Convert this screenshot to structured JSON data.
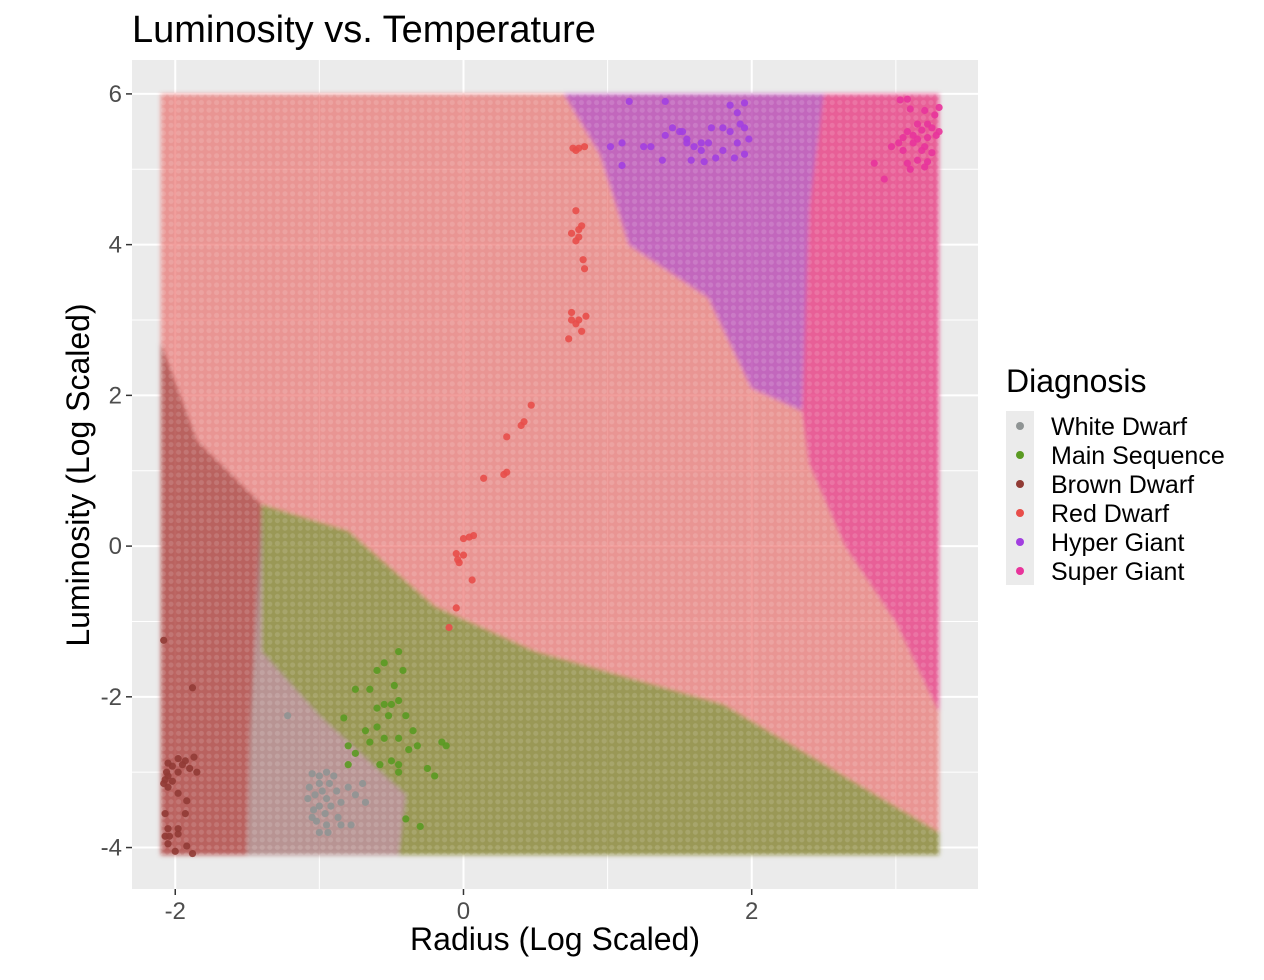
{
  "chart_data": {
    "type": "scatter",
    "title": "Luminosity vs. Temperature",
    "xlabel": "Radius (Log Scaled)",
    "ylabel": "Luminosity (Log Scaled)",
    "xlim": [
      -2.3,
      3.57
    ],
    "ylim": [
      -4.55,
      6.45
    ],
    "x_ticks": [
      -2,
      0,
      2
    ],
    "y_ticks": [
      -4,
      -2,
      0,
      2,
      4,
      6
    ],
    "grid": true,
    "legend_title": "Diagnosis",
    "legend_position": "right",
    "background_regions": "classification decision regions filling x -2.1..3.3, y -4.1..6.0",
    "series": [
      {
        "name": "White Dwarf",
        "color": "#8f9494",
        "points": [
          [
            -1.22,
            -2.25
          ],
          [
            -1.05,
            -3.02
          ],
          [
            -1.0,
            -3.05
          ],
          [
            -0.95,
            -3.0
          ],
          [
            -0.9,
            -3.05
          ],
          [
            -1.0,
            -3.15
          ],
          [
            -0.93,
            -3.15
          ],
          [
            -1.07,
            -3.2
          ],
          [
            -0.98,
            -3.25
          ],
          [
            -0.88,
            -3.25
          ],
          [
            -1.03,
            -3.3
          ],
          [
            -0.95,
            -3.35
          ],
          [
            -1.08,
            -3.35
          ],
          [
            -1.0,
            -3.45
          ],
          [
            -0.92,
            -3.45
          ],
          [
            -1.04,
            -3.5
          ],
          [
            -0.96,
            -3.55
          ],
          [
            -0.87,
            -3.6
          ],
          [
            -1.02,
            -3.65
          ],
          [
            -0.95,
            -3.7
          ],
          [
            -1.0,
            -3.8
          ],
          [
            -0.94,
            -3.8
          ],
          [
            -0.85,
            -3.7
          ],
          [
            -0.78,
            -3.7
          ],
          [
            -0.8,
            -3.2
          ],
          [
            -0.7,
            -3.15
          ],
          [
            -0.68,
            -3.4
          ],
          [
            -0.75,
            -3.3
          ],
          [
            -0.85,
            -3.4
          ],
          [
            -1.05,
            -3.6
          ]
        ]
      },
      {
        "name": "Main Sequence",
        "color": "#5a9a22",
        "points": [
          [
            -0.45,
            -1.4
          ],
          [
            -0.55,
            -1.55
          ],
          [
            -0.42,
            -1.65
          ],
          [
            -0.6,
            -1.65
          ],
          [
            -0.48,
            -1.85
          ],
          [
            -0.65,
            -1.9
          ],
          [
            -0.75,
            -1.9
          ],
          [
            -0.55,
            -2.1
          ],
          [
            -0.6,
            -2.15
          ],
          [
            -0.5,
            -2.1
          ],
          [
            -0.45,
            -2.05
          ],
          [
            -0.83,
            -2.28
          ],
          [
            -0.52,
            -2.25
          ],
          [
            -0.4,
            -2.25
          ],
          [
            -0.35,
            -2.45
          ],
          [
            -0.6,
            -2.4
          ],
          [
            -0.68,
            -2.45
          ],
          [
            -0.55,
            -2.55
          ],
          [
            -0.45,
            -2.55
          ],
          [
            -0.32,
            -2.65
          ],
          [
            -0.38,
            -2.7
          ],
          [
            -0.8,
            -2.65
          ],
          [
            -0.75,
            -2.75
          ],
          [
            -0.5,
            -2.85
          ],
          [
            -0.45,
            -2.9
          ],
          [
            -0.58,
            -2.9
          ],
          [
            -0.8,
            -2.9
          ],
          [
            -0.45,
            -3.0
          ],
          [
            -0.25,
            -2.95
          ],
          [
            -0.2,
            -3.05
          ],
          [
            -0.65,
            -2.6
          ],
          [
            -0.15,
            -2.6
          ],
          [
            -0.12,
            -2.65
          ],
          [
            -0.4,
            -3.62
          ],
          [
            -0.3,
            -3.72
          ]
        ]
      },
      {
        "name": "Brown Dwarf",
        "color": "#913b35",
        "points": [
          [
            -2.08,
            -1.25
          ],
          [
            -1.88,
            -1.88
          ],
          [
            -2.05,
            -2.88
          ],
          [
            -1.98,
            -2.82
          ],
          [
            -1.93,
            -2.85
          ],
          [
            -1.87,
            -2.8
          ],
          [
            -2.02,
            -2.92
          ],
          [
            -1.95,
            -2.9
          ],
          [
            -1.9,
            -2.95
          ],
          [
            -2.05,
            -3.05
          ],
          [
            -1.98,
            -3.0
          ],
          [
            -1.85,
            -3.0
          ],
          [
            -2.07,
            -3.1
          ],
          [
            -2.02,
            -3.12
          ],
          [
            -2.05,
            -3.2
          ],
          [
            -2.08,
            -3.15
          ],
          [
            -1.98,
            -3.28
          ],
          [
            -1.92,
            -3.38
          ],
          [
            -2.07,
            -3.55
          ],
          [
            -1.93,
            -3.55
          ],
          [
            -2.05,
            -3.75
          ],
          [
            -1.98,
            -3.75
          ],
          [
            -2.07,
            -3.85
          ],
          [
            -2.04,
            -3.85
          ],
          [
            -1.98,
            -3.82
          ],
          [
            -2.05,
            -3.95
          ],
          [
            -1.92,
            -3.98
          ],
          [
            -2.0,
            -4.05
          ],
          [
            -1.88,
            -4.08
          ],
          [
            -2.06,
            -3.0
          ]
        ]
      },
      {
        "name": "Red Dwarf",
        "color": "#e84e4a",
        "points": [
          [
            -0.1,
            -1.08
          ],
          [
            -0.05,
            -0.82
          ],
          [
            0.06,
            -0.45
          ],
          [
            -0.04,
            -0.18
          ],
          [
            -0.03,
            -0.22
          ],
          [
            -0.05,
            -0.1
          ],
          [
            0.0,
            -0.12
          ],
          [
            0.0,
            0.1
          ],
          [
            0.04,
            0.12
          ],
          [
            0.07,
            0.14
          ],
          [
            0.14,
            0.9
          ],
          [
            0.28,
            0.95
          ],
          [
            0.3,
            0.98
          ],
          [
            0.3,
            1.45
          ],
          [
            0.4,
            1.6
          ],
          [
            0.42,
            1.65
          ],
          [
            0.47,
            1.87
          ],
          [
            0.73,
            2.75
          ],
          [
            0.78,
            2.95
          ],
          [
            0.75,
            3.0
          ],
          [
            0.8,
            3.0
          ],
          [
            0.82,
            2.85
          ],
          [
            0.85,
            3.05
          ],
          [
            0.75,
            3.1
          ],
          [
            0.75,
            4.15
          ],
          [
            0.8,
            4.2
          ],
          [
            0.8,
            4.1
          ],
          [
            0.78,
            4.05
          ],
          [
            0.82,
            4.25
          ],
          [
            0.78,
            4.45
          ],
          [
            0.83,
            3.8
          ],
          [
            0.84,
            3.68
          ],
          [
            0.78,
            5.25
          ],
          [
            0.8,
            5.28
          ],
          [
            0.84,
            5.3
          ],
          [
            0.76,
            5.28
          ]
        ]
      },
      {
        "name": "Hyper Giant",
        "color": "#a23fe0",
        "points": [
          [
            1.15,
            5.9
          ],
          [
            1.4,
            5.9
          ],
          [
            1.85,
            5.85
          ],
          [
            1.95,
            5.88
          ],
          [
            1.9,
            5.75
          ],
          [
            1.45,
            5.55
          ],
          [
            1.52,
            5.5
          ],
          [
            1.72,
            5.55
          ],
          [
            1.8,
            5.55
          ],
          [
            1.85,
            5.5
          ],
          [
            1.95,
            5.55
          ],
          [
            1.98,
            5.4
          ],
          [
            1.4,
            5.45
          ],
          [
            1.55,
            5.4
          ],
          [
            1.65,
            5.35
          ],
          [
            1.7,
            5.35
          ],
          [
            1.9,
            5.35
          ],
          [
            1.1,
            5.35
          ],
          [
            1.25,
            5.3
          ],
          [
            1.3,
            5.3
          ],
          [
            1.55,
            5.35
          ],
          [
            1.6,
            5.3
          ],
          [
            1.65,
            5.25
          ],
          [
            1.8,
            5.25
          ],
          [
            1.95,
            5.2
          ],
          [
            1.38,
            5.12
          ],
          [
            1.58,
            5.12
          ],
          [
            1.67,
            5.1
          ],
          [
            1.75,
            5.15
          ],
          [
            1.88,
            5.15
          ],
          [
            1.1,
            5.05
          ],
          [
            1.02,
            5.3
          ],
          [
            1.92,
            5.6
          ],
          [
            1.5,
            5.5
          ]
        ]
      },
      {
        "name": "Super Giant",
        "color": "#e8349b",
        "points": [
          [
            3.03,
            5.92
          ],
          [
            3.08,
            5.93
          ],
          [
            3.1,
            5.8
          ],
          [
            3.2,
            5.78
          ],
          [
            3.27,
            5.72
          ],
          [
            3.3,
            5.82
          ],
          [
            3.15,
            5.6
          ],
          [
            3.22,
            5.6
          ],
          [
            3.25,
            5.55
          ],
          [
            3.18,
            5.52
          ],
          [
            3.08,
            5.5
          ],
          [
            3.12,
            5.45
          ],
          [
            3.05,
            5.42
          ],
          [
            3.15,
            5.4
          ],
          [
            3.22,
            5.42
          ],
          [
            3.28,
            5.45
          ],
          [
            3.3,
            5.5
          ],
          [
            3.02,
            5.35
          ],
          [
            3.12,
            5.35
          ],
          [
            3.2,
            5.3
          ],
          [
            2.97,
            5.3
          ],
          [
            3.05,
            5.25
          ],
          [
            3.18,
            5.25
          ],
          [
            3.25,
            5.22
          ],
          [
            3.22,
            5.1
          ],
          [
            3.15,
            5.12
          ],
          [
            3.08,
            5.08
          ],
          [
            3.2,
            5.03
          ],
          [
            3.1,
            5.0
          ],
          [
            2.85,
            5.08
          ],
          [
            2.92,
            4.87
          ]
        ]
      }
    ]
  }
}
